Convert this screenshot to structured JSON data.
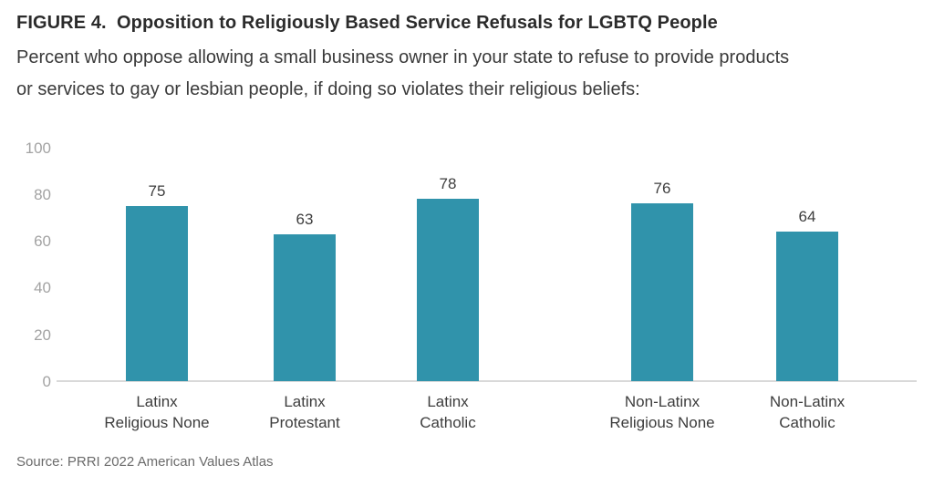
{
  "header": {
    "title": "FIGURE 4.  Opposition to Religiously Based Service Refusals for LGBTQ People",
    "subtitle_line1": "Percent who oppose allowing a small business owner in your state to refuse to provide products",
    "subtitle_line2": "or services to gay or lesbian people, if doing so violates their religious beliefs:"
  },
  "chart_data": {
    "type": "bar",
    "title": "Opposition to Religiously Based Service Refusals for LGBTQ People",
    "subtitle": "Percent who oppose allowing a small business owner in your state to refuse to provide products or services to gay or lesbian people, if doing so violates their religious beliefs:",
    "categories": [
      [
        "Latinx",
        "Religious None"
      ],
      [
        "Latinx",
        "Protestant"
      ],
      [
        "Latinx",
        "Catholic"
      ],
      [
        "Non-Latinx",
        "Religious None"
      ],
      [
        "Non-Latinx",
        "Catholic"
      ]
    ],
    "values": [
      75,
      63,
      78,
      76,
      64
    ],
    "yticks": [
      100,
      80,
      60,
      40,
      20,
      0
    ],
    "ylim": [
      0,
      100
    ],
    "xlabel": "",
    "ylabel": "",
    "grid": false,
    "legend": false,
    "bar_color": "#3093ab",
    "axis_line_color": "#d9d9d9",
    "tick_label_color": "#a3a3a3"
  },
  "footer": {
    "source": "Source: PRRI 2022 American Values Atlas"
  }
}
